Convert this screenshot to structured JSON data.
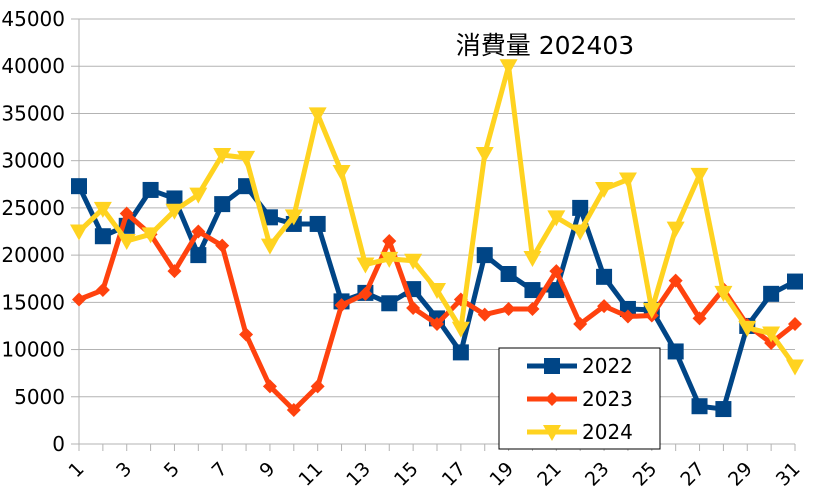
{
  "chart_data": {
    "type": "line",
    "title": "消費量 202403",
    "xlabel": "",
    "ylabel": "",
    "ylim": [
      0,
      45000
    ],
    "y_ticks": [
      0,
      5000,
      10000,
      15000,
      20000,
      25000,
      30000,
      35000,
      40000,
      45000
    ],
    "x_tick_labels": [
      "1",
      "3",
      "5",
      "7",
      "9",
      "11",
      "13",
      "15",
      "17",
      "19",
      "21",
      "23",
      "25",
      "27",
      "29",
      "31"
    ],
    "x": [
      1,
      2,
      3,
      4,
      5,
      6,
      7,
      8,
      9,
      10,
      11,
      12,
      13,
      14,
      15,
      16,
      17,
      18,
      19,
      20,
      21,
      22,
      23,
      24,
      25,
      26,
      27,
      28,
      29,
      30,
      31
    ],
    "grid": "horizontal",
    "legend_position": "bottom-right",
    "series": [
      {
        "name": "2022",
        "color": "#004586",
        "marker": "square",
        "values": [
          27300,
          22000,
          23100,
          26900,
          26000,
          20000,
          25400,
          27300,
          24000,
          23300,
          23300,
          15100,
          16000,
          14900,
          16400,
          13300,
          9700,
          20000,
          18000,
          16300,
          16300,
          25000,
          17700,
          14300,
          14200,
          9800,
          4000,
          3700,
          12500,
          15900,
          17200
        ]
      },
      {
        "name": "2023",
        "color": "#ff420e",
        "marker": "diamond",
        "values": [
          15300,
          16300,
          24400,
          22200,
          18300,
          22500,
          21000,
          11600,
          6100,
          3600,
          6100,
          14700,
          15900,
          21500,
          14400,
          12700,
          15300,
          13700,
          14300,
          14300,
          18300,
          12700,
          14600,
          13500,
          13600,
          17300,
          13300,
          16400,
          12600,
          10700,
          12700
        ]
      },
      {
        "name": "2024",
        "color": "#ffd320",
        "marker": "triangle-down",
        "values": [
          22500,
          24900,
          21500,
          22200,
          24700,
          26400,
          30600,
          30300,
          21000,
          24100,
          34900,
          28800,
          19000,
          19600,
          19400,
          16300,
          12200,
          30700,
          40000,
          19700,
          24000,
          22500,
          27000,
          28000,
          14200,
          22800,
          28500,
          16000,
          12300,
          11700,
          8200
        ]
      }
    ]
  }
}
